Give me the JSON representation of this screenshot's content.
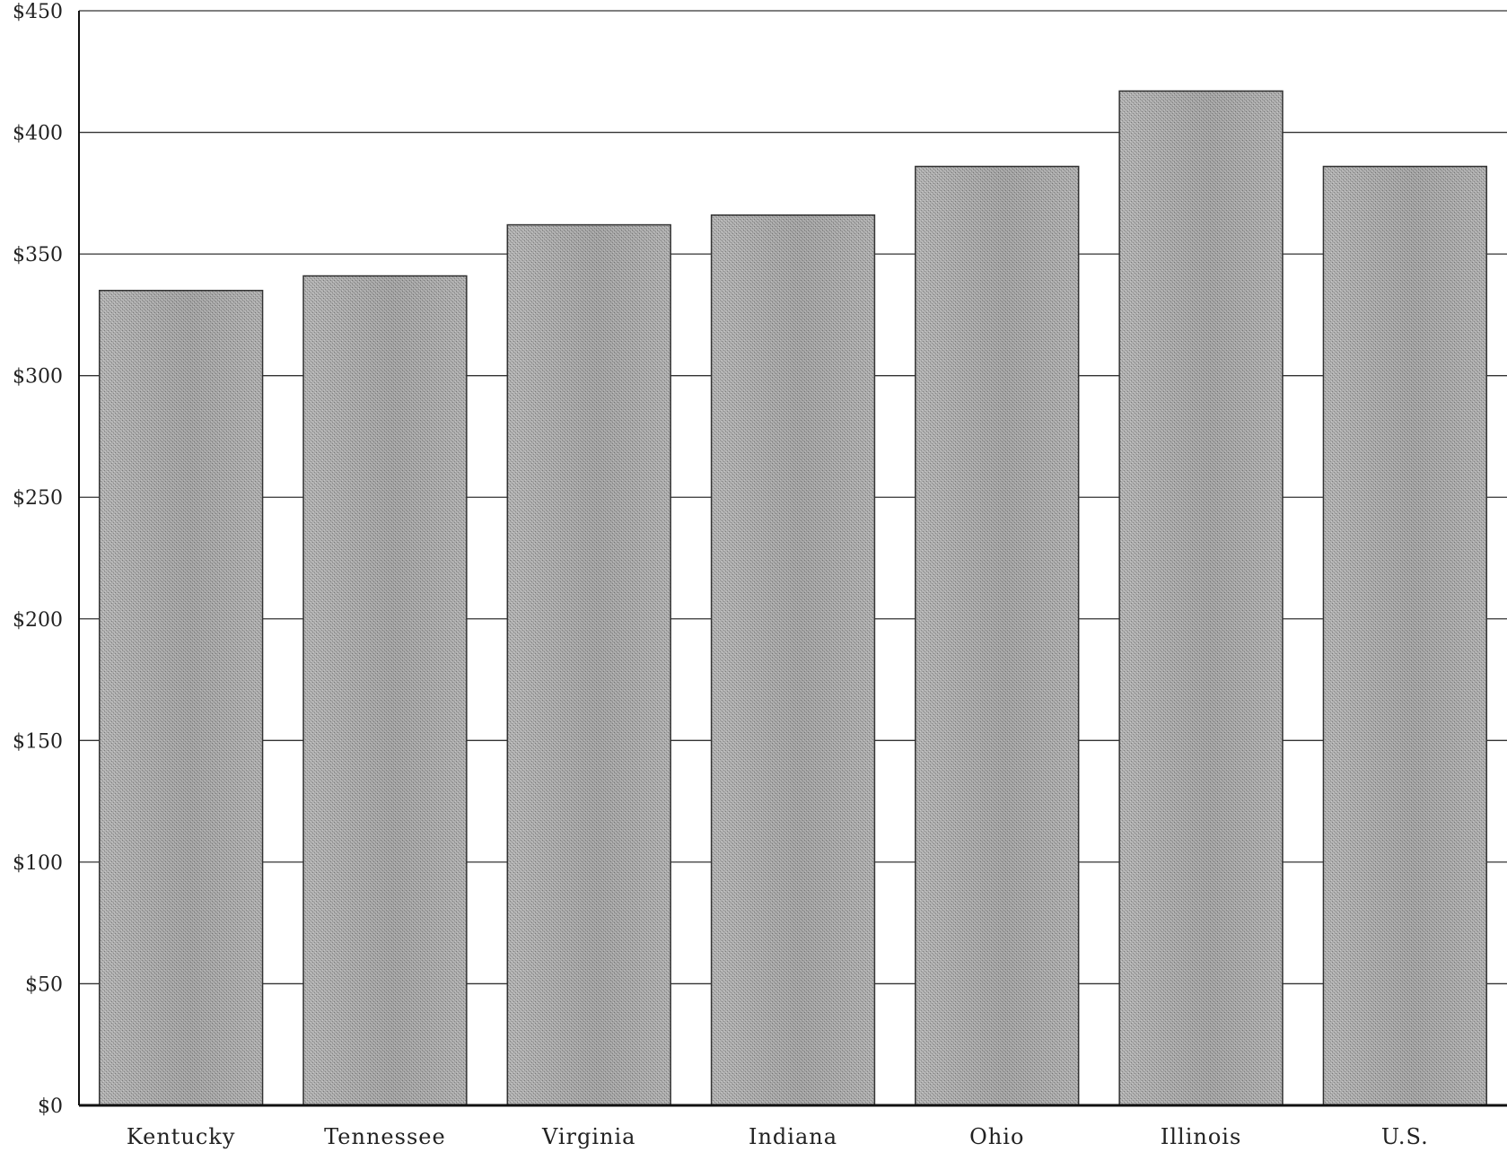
{
  "chart_data": {
    "type": "bar",
    "categories": [
      "Kentucky",
      "Tennessee",
      "Virginia",
      "Indiana",
      "Ohio",
      "Illinois",
      "U.S."
    ],
    "values": [
      335,
      341,
      362,
      366,
      386,
      417,
      386
    ],
    "title": "",
    "xlabel": "",
    "ylabel": "",
    "ylim": [
      0,
      450
    ],
    "yticks": [
      0,
      50,
      100,
      150,
      200,
      250,
      300,
      350,
      400,
      450
    ],
    "ytick_labels": [
      "$0",
      "$50",
      "$100",
      "$150",
      "$200",
      "$250",
      "$300",
      "$350",
      "$400",
      "$450"
    ],
    "grid": true,
    "legend": "none",
    "bar_color": "#a9a9a9"
  }
}
